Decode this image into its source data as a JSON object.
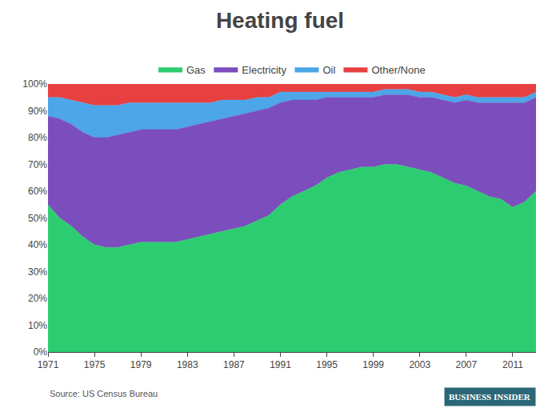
{
  "chart_data": {
    "type": "area",
    "stacked": true,
    "title": "Heating fuel",
    "x": [
      1971,
      1972,
      1973,
      1974,
      1975,
      1976,
      1977,
      1978,
      1979,
      1980,
      1981,
      1982,
      1983,
      1984,
      1985,
      1986,
      1987,
      1988,
      1989,
      1990,
      1991,
      1992,
      1993,
      1994,
      1995,
      1996,
      1997,
      1998,
      1999,
      2000,
      2001,
      2002,
      2003,
      2004,
      2005,
      2006,
      2007,
      2008,
      2009,
      2010,
      2011,
      2012,
      2013
    ],
    "series": [
      {
        "name": "Gas",
        "color": "#2ecc71",
        "values": [
          55,
          50,
          47,
          43,
          40,
          39,
          39,
          40,
          41,
          41,
          41,
          41,
          42,
          43,
          44,
          45,
          46,
          47,
          49,
          51,
          55,
          58,
          60,
          62,
          65,
          67,
          68,
          69,
          69,
          70,
          70,
          69,
          68,
          67,
          65,
          63,
          62,
          60,
          58,
          57,
          54,
          56,
          60
        ]
      },
      {
        "name": "Electricity",
        "color": "#7b4dbd",
        "values": [
          33,
          37,
          38,
          39,
          40,
          41,
          42,
          42,
          42,
          42,
          42,
          42,
          42,
          42,
          42,
          42,
          42,
          42,
          41,
          40,
          38,
          36,
          34,
          32,
          30,
          28,
          27,
          26,
          26,
          26,
          26,
          27,
          27,
          28,
          29,
          30,
          32,
          33,
          35,
          36,
          39,
          37,
          35
        ]
      },
      {
        "name": "Oil",
        "color": "#4da6e8",
        "values": [
          7,
          8,
          9,
          11,
          12,
          12,
          11,
          11,
          10,
          10,
          10,
          10,
          9,
          8,
          7,
          7,
          6,
          5,
          5,
          4,
          4,
          3,
          3,
          3,
          2,
          2,
          2,
          2,
          2,
          2,
          2,
          2,
          2,
          2,
          2,
          2,
          2,
          2,
          2,
          2,
          2,
          2,
          2
        ]
      },
      {
        "name": "Other/None",
        "color": "#e84040",
        "values": [
          5,
          5,
          6,
          7,
          8,
          8,
          8,
          7,
          7,
          7,
          7,
          7,
          7,
          7,
          7,
          6,
          6,
          6,
          5,
          5,
          3,
          3,
          3,
          3,
          3,
          3,
          3,
          3,
          3,
          2,
          2,
          2,
          3,
          3,
          4,
          5,
          4,
          5,
          5,
          5,
          5,
          5,
          3
        ]
      }
    ],
    "xlim": [
      1971,
      2013
    ],
    "xticks": [
      1971,
      1975,
      1979,
      1983,
      1987,
      1991,
      1995,
      1999,
      2003,
      2007,
      2011
    ],
    "ylim": [
      0,
      100
    ],
    "yticks": [
      {
        "value": 0,
        "label": "0%"
      },
      {
        "value": 10,
        "label": "10%"
      },
      {
        "value": 20,
        "label": "20%"
      },
      {
        "value": 30,
        "label": "30%"
      },
      {
        "value": 40,
        "label": "40%"
      },
      {
        "value": 50,
        "label": "50%"
      },
      {
        "value": 60,
        "label": "60%"
      },
      {
        "value": 70,
        "label": "70%"
      },
      {
        "value": 80,
        "label": "80%"
      },
      {
        "value": 90,
        "label": "90%"
      },
      {
        "value": 100,
        "label": "100%"
      }
    ],
    "grid": true,
    "legend": "top",
    "annotations": [
      "Source: US Census Bureau",
      "BUSINESS INSIDER"
    ]
  }
}
